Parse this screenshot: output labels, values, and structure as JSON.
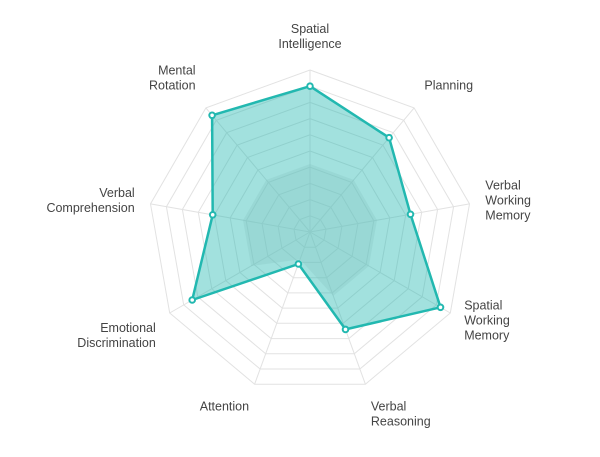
{
  "chart_data": {
    "type": "radar",
    "title": "",
    "scale": [
      0,
      10
    ],
    "grid_levels": 10,
    "grid": true,
    "legend": "none",
    "axes": [
      [
        "Spatial",
        "Intelligence"
      ],
      [
        "Planning"
      ],
      [
        "Verbal",
        "Working",
        "Memory"
      ],
      [
        "Spatial",
        "Working",
        "Memory"
      ],
      [
        "Verbal",
        "Reasoning"
      ],
      [
        "Attention"
      ],
      [
        "Emotional",
        "Discrimination"
      ],
      [
        "Verbal",
        "Comprehension"
      ],
      [
        "Mental",
        "Rotation"
      ]
    ],
    "series": [
      {
        "values": [
          9.0,
          7.6,
          6.3,
          9.3,
          6.4,
          2.1,
          8.4,
          6.1,
          9.4
        ],
        "color": "#22b8b0"
      },
      {
        "values": [
          4.2,
          4.2,
          4.2,
          4.2,
          4.2,
          1.8,
          4.2,
          4.2,
          4.2
        ],
        "color": "#cccccc"
      }
    ]
  }
}
